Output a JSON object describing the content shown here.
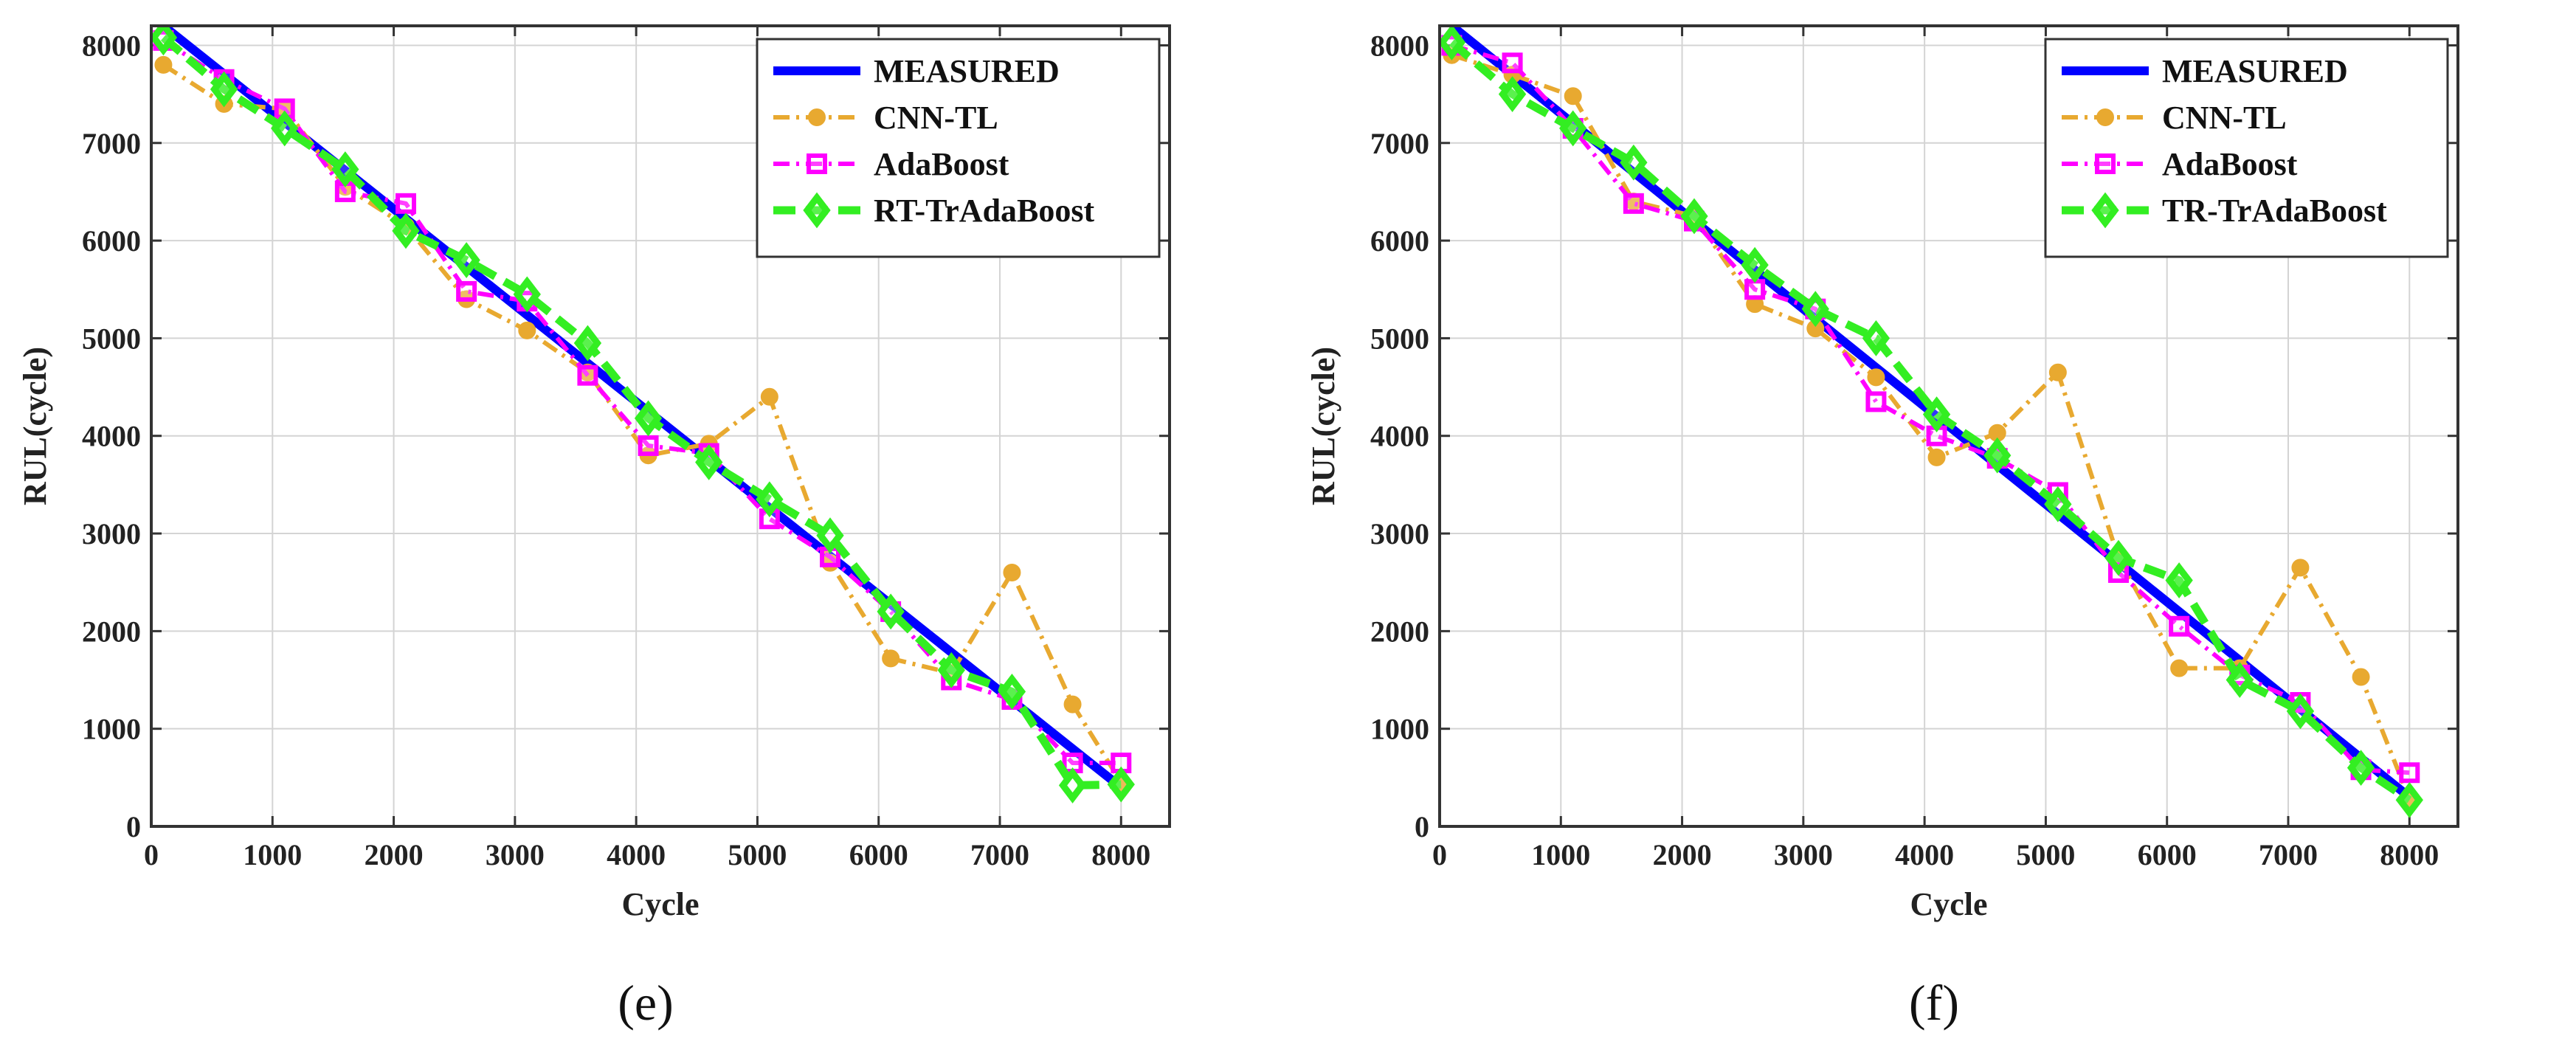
{
  "chart_data": [
    {
      "type": "line",
      "panel_label": "e",
      "title": "",
      "xlabel": "Cycle",
      "ylabel": "RUL(cycle)",
      "xlim": [
        0,
        8400
      ],
      "ylim": [
        0,
        8200
      ],
      "xticks": [
        0,
        1000,
        2000,
        3000,
        4000,
        5000,
        6000,
        7000,
        8000
      ],
      "yticks": [
        0,
        1000,
        2000,
        3000,
        4000,
        5000,
        6000,
        7000,
        8000
      ],
      "grid": true,
      "legend_position": "top-right",
      "series": [
        {
          "name": "MEASURED",
          "color": "#0000ff",
          "style": "solid",
          "marker": "none",
          "x": [
            100,
            8000
          ],
          "y": [
            8200,
            400
          ]
        },
        {
          "name": "CNN-TL",
          "color": "#e8a930",
          "style": "dash-dot",
          "marker": "circle",
          "x": [
            100,
            600,
            1100,
            1600,
            2100,
            2600,
            3100,
            3600,
            4100,
            4600,
            5100,
            5600,
            6100,
            6600,
            7100,
            7600,
            8000
          ],
          "y": [
            7800,
            7400,
            7350,
            6550,
            6150,
            5400,
            5080,
            4650,
            3800,
            3920,
            4400,
            2700,
            1720,
            1570,
            2600,
            1250,
            450
          ]
        },
        {
          "name": "AdaBoost",
          "color": "#ff00ff",
          "style": "dash-dot",
          "marker": "square",
          "x": [
            100,
            600,
            1100,
            1600,
            2100,
            2600,
            3100,
            3600,
            4100,
            4600,
            5100,
            5600,
            6100,
            6600,
            7100,
            7600,
            8000
          ],
          "y": [
            8050,
            7650,
            7350,
            6500,
            6380,
            5480,
            5380,
            4620,
            3900,
            3820,
            3150,
            2760,
            2200,
            1500,
            1300,
            650,
            650
          ]
        },
        {
          "name": "RT-TrAdaBoost",
          "color": "#33ee22",
          "style": "dashed",
          "marker": "diamond",
          "x": [
            100,
            600,
            1100,
            1600,
            2100,
            2600,
            3100,
            3600,
            4100,
            4600,
            5100,
            5600,
            6100,
            6600,
            7100,
            7600,
            8000
          ],
          "y": [
            8080,
            7550,
            7150,
            6730,
            6100,
            5800,
            5450,
            4950,
            4180,
            3730,
            3350,
            2980,
            2200,
            1600,
            1380,
            420,
            430
          ]
        }
      ]
    },
    {
      "type": "line",
      "panel_label": "f",
      "title": "",
      "xlabel": "Cycle",
      "ylabel": "RUL(cycle)",
      "xlim": [
        0,
        8400
      ],
      "ylim": [
        0,
        8200
      ],
      "xticks": [
        0,
        1000,
        2000,
        3000,
        4000,
        5000,
        6000,
        7000,
        8000
      ],
      "yticks": [
        0,
        1000,
        2000,
        3000,
        4000,
        5000,
        6000,
        7000,
        8000
      ],
      "grid": true,
      "legend_position": "top-right",
      "series": [
        {
          "name": "MEASURED",
          "color": "#0000ff",
          "style": "solid",
          "marker": "none",
          "x": [
            100,
            8000
          ],
          "y": [
            8200,
            300
          ]
        },
        {
          "name": "CNN-TL",
          "color": "#e8a930",
          "style": "dash-dot",
          "marker": "circle",
          "x": [
            100,
            600,
            1100,
            1600,
            2100,
            2600,
            3100,
            3600,
            4100,
            4600,
            5100,
            5600,
            6100,
            6600,
            7100,
            7600,
            8000
          ],
          "y": [
            7900,
            7700,
            7480,
            6400,
            6250,
            5350,
            5100,
            4600,
            3780,
            4030,
            4650,
            2750,
            1620,
            1620,
            2650,
            1530,
            280
          ]
        },
        {
          "name": "AdaBoost",
          "color": "#ff00ff",
          "style": "dash-dot",
          "marker": "square",
          "x": [
            100,
            600,
            1100,
            1600,
            2100,
            2600,
            3100,
            3600,
            4100,
            4600,
            5100,
            5600,
            6100,
            6600,
            7100,
            7600,
            8000
          ],
          "y": [
            8000,
            7820,
            7150,
            6380,
            6200,
            5500,
            5300,
            4350,
            4000,
            3770,
            3420,
            2600,
            2050,
            1550,
            1270,
            580,
            550
          ]
        },
        {
          "name": "TR-TrAdaBoost",
          "color": "#33ee22",
          "style": "dashed",
          "marker": "diamond",
          "x": [
            100,
            600,
            1100,
            1600,
            2100,
            2600,
            3100,
            3600,
            4100,
            4600,
            5100,
            5600,
            6100,
            6600,
            7100,
            7600,
            8000
          ],
          "y": [
            8030,
            7500,
            7150,
            6800,
            6250,
            5750,
            5300,
            5000,
            4220,
            3800,
            3300,
            2750,
            2520,
            1500,
            1180,
            600,
            270
          ]
        }
      ]
    }
  ],
  "captions": {
    "e": "(e)",
    "f": "(f)"
  }
}
